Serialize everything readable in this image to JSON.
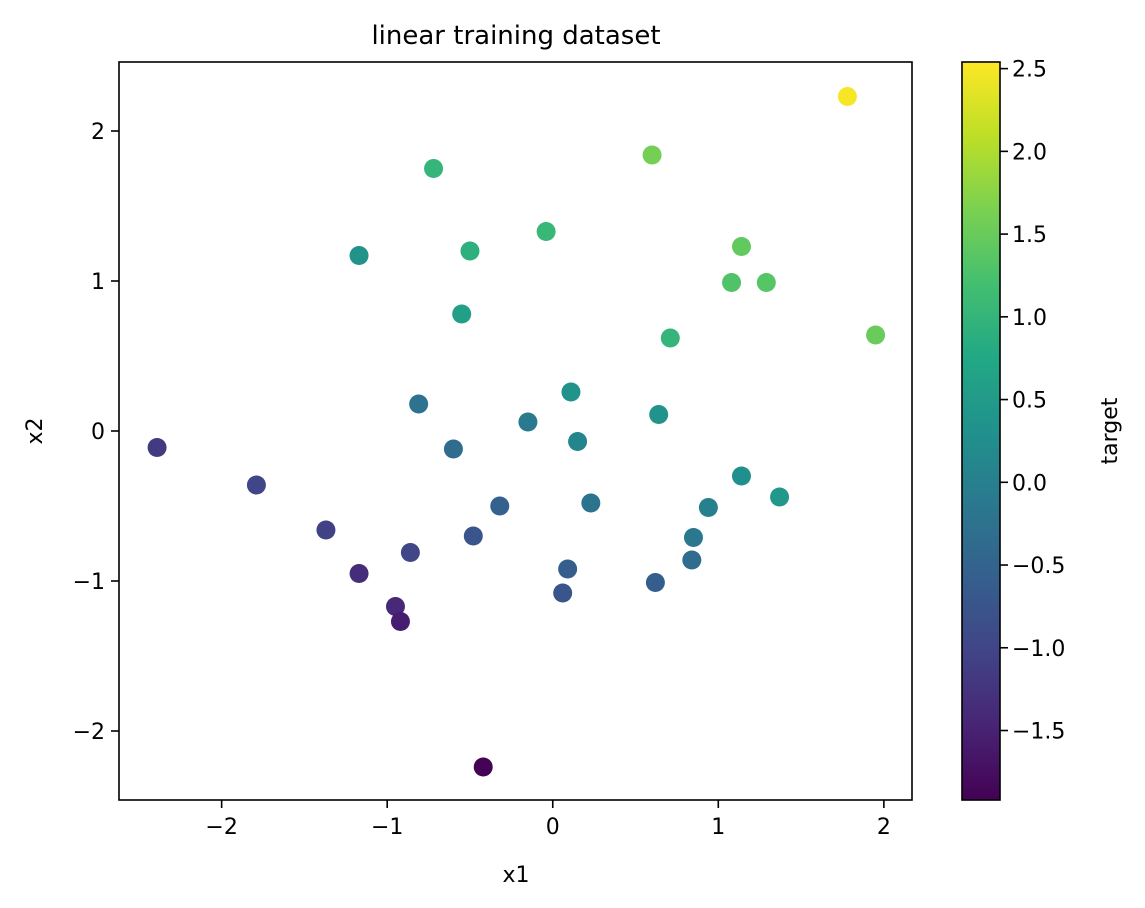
{
  "chart_data": {
    "type": "scatter",
    "title": "linear training dataset",
    "xlabel": "x1",
    "ylabel": "x2",
    "xlim": [
      -2.62,
      2.17
    ],
    "ylim": [
      -2.46,
      2.46
    ],
    "xticks": [
      -2,
      -1,
      0,
      1,
      2
    ],
    "yticks": [
      -2,
      -1,
      0,
      1,
      2
    ],
    "grid": false,
    "colorbar": {
      "label": "target",
      "colormap": "viridis",
      "range": [
        -1.92,
        2.54
      ],
      "ticks": [
        -1.5,
        -1.0,
        -0.5,
        0.0,
        0.5,
        1.0,
        1.5,
        2.0,
        2.5
      ]
    },
    "points": [
      {
        "x": 1.78,
        "y": 2.23,
        "c": 2.5
      },
      {
        "x": 0.6,
        "y": 1.84,
        "c": 1.6
      },
      {
        "x": -0.72,
        "y": 1.75,
        "c": 1.0
      },
      {
        "x": -0.04,
        "y": 1.33,
        "c": 1.05
      },
      {
        "x": 1.14,
        "y": 1.23,
        "c": 1.45
      },
      {
        "x": -0.5,
        "y": 1.2,
        "c": 0.9
      },
      {
        "x": -1.17,
        "y": 1.17,
        "c": 0.35
      },
      {
        "x": 1.08,
        "y": 0.99,
        "c": 1.3
      },
      {
        "x": 1.29,
        "y": 0.99,
        "c": 1.35
      },
      {
        "x": 1.95,
        "y": 0.64,
        "c": 1.5
      },
      {
        "x": -0.55,
        "y": 0.78,
        "c": 0.6
      },
      {
        "x": 0.71,
        "y": 0.62,
        "c": 1.0
      },
      {
        "x": 0.11,
        "y": 0.26,
        "c": 0.35
      },
      {
        "x": -0.81,
        "y": 0.18,
        "c": -0.25
      },
      {
        "x": 0.64,
        "y": 0.11,
        "c": 0.35
      },
      {
        "x": -0.15,
        "y": 0.06,
        "c": -0.1
      },
      {
        "x": 0.15,
        "y": -0.07,
        "c": 0.1
      },
      {
        "x": -0.6,
        "y": -0.12,
        "c": -0.35
      },
      {
        "x": -2.39,
        "y": -0.11,
        "c": -1.15
      },
      {
        "x": -1.79,
        "y": -0.36,
        "c": -1.0
      },
      {
        "x": 1.14,
        "y": -0.3,
        "c": 0.3
      },
      {
        "x": 1.37,
        "y": -0.44,
        "c": 0.45
      },
      {
        "x": 0.23,
        "y": -0.48,
        "c": -0.2
      },
      {
        "x": 0.94,
        "y": -0.51,
        "c": 0.0
      },
      {
        "x": -0.32,
        "y": -0.5,
        "c": -0.55
      },
      {
        "x": -1.37,
        "y": -0.66,
        "c": -1.05
      },
      {
        "x": -0.48,
        "y": -0.7,
        "c": -0.75
      },
      {
        "x": 0.85,
        "y": -0.71,
        "c": -0.15
      },
      {
        "x": -0.86,
        "y": -0.81,
        "c": -1.0
      },
      {
        "x": 0.84,
        "y": -0.86,
        "c": -0.35
      },
      {
        "x": 0.09,
        "y": -0.92,
        "c": -0.6
      },
      {
        "x": 0.62,
        "y": -1.01,
        "c": -0.6
      },
      {
        "x": -1.17,
        "y": -0.95,
        "c": -1.35
      },
      {
        "x": 0.06,
        "y": -1.08,
        "c": -0.75
      },
      {
        "x": -0.95,
        "y": -1.17,
        "c": -1.4
      },
      {
        "x": -0.92,
        "y": -1.27,
        "c": -1.55
      },
      {
        "x": -0.42,
        "y": -2.24,
        "c": -1.9
      }
    ]
  }
}
